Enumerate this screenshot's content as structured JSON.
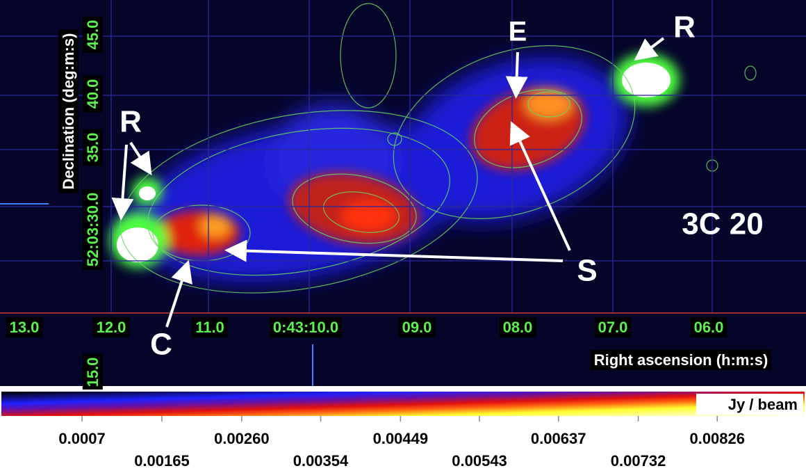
{
  "image": {
    "annotations": [
      "R",
      "R",
      "E",
      "S",
      "C",
      "3C 20"
    ]
  },
  "axes": {
    "x_label": "Right ascension (h:m:s)",
    "y_label": "Declination (deg:m:s)",
    "x_ticks": [
      "13.0",
      "12.0",
      "11.0",
      "0:43:10.0",
      "09.0",
      "08.0",
      "07.0",
      "06.0"
    ],
    "y_ticks": [
      "15.0",
      "52:03:30.0",
      "35.0",
      "40.0",
      "45.0"
    ]
  },
  "colorbar": {
    "label": "Jy / beam",
    "lim": [
      -0.00026,
      0.0093
    ],
    "ticks": [
      0.0007,
      {
        "value": 0.00165,
        "label": "0.00165"
      },
      {
        "value": 0.0026,
        "label": "0.00260"
      },
      0.00354,
      0.00449,
      0.00543,
      0.00637,
      0.00732,
      0.00826
    ]
  }
}
